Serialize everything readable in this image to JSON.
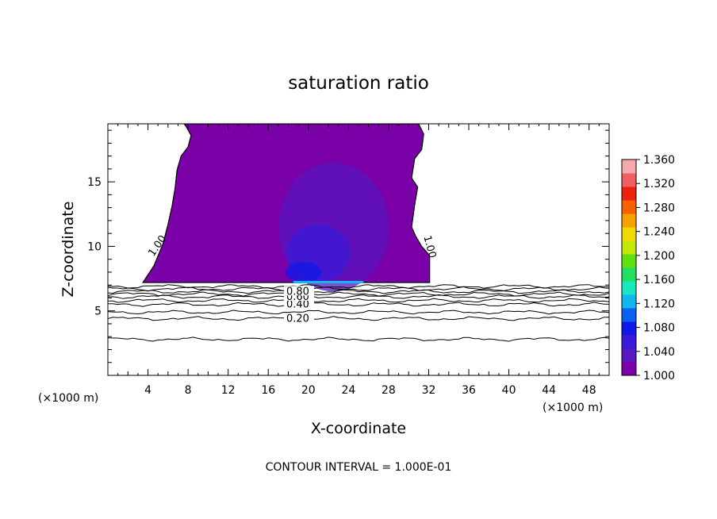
{
  "chart_data": {
    "type": "heatmap",
    "title": "saturation ratio",
    "xlabel": "X-coordinate",
    "ylabel": "Z-coordinate",
    "x_unit_left": "(×1000 m)",
    "x_unit_right": "(×1000 m)",
    "xlim": [
      0,
      50
    ],
    "ylim": [
      0,
      19.5
    ],
    "x_ticks": [
      4,
      8,
      12,
      16,
      20,
      24,
      28,
      32,
      36,
      40,
      44,
      48
    ],
    "y_ticks": [
      5,
      10,
      15
    ],
    "footer": "CONTOUR INTERVAL = 1.000E-01",
    "contour_interval": 0.1,
    "colorbar": {
      "ticks": [
        "1.360",
        "1.320",
        "1.280",
        "1.240",
        "1.200",
        "1.160",
        "1.120",
        "1.080",
        "1.040",
        "1.000"
      ],
      "min": 1.0,
      "max": 1.36,
      "colors": [
        "#7a00a8",
        "#5a16bf",
        "#3a1ad8",
        "#1018e8",
        "#0a60f0",
        "#10b8f0",
        "#18e8c0",
        "#20e060",
        "#60e010",
        "#c0e800",
        "#f0d800",
        "#f8a000",
        "#f86000",
        "#f02010",
        "#f06060",
        "#f8a8a8"
      ]
    },
    "supersaturated_region": {
      "x_left_edge": [
        [
          3.5,
          7.2
        ],
        [
          4.6,
          8.5
        ],
        [
          5.5,
          10.2
        ],
        [
          6.0,
          11.7
        ],
        [
          6.4,
          13.1
        ],
        [
          6.7,
          14.5
        ],
        [
          6.9,
          15.9
        ],
        [
          7.3,
          17.0
        ],
        [
          8.0,
          17.7
        ],
        [
          8.3,
          18.6
        ],
        [
          7.8,
          19.3
        ],
        [
          7.6,
          19.5
        ]
      ],
      "x_right_edge": [
        [
          31.0,
          19.5
        ],
        [
          31.5,
          18.7
        ],
        [
          31.3,
          17.5
        ],
        [
          30.6,
          16.8
        ],
        [
          30.3,
          15.3
        ],
        [
          30.9,
          14.6
        ],
        [
          30.6,
          13.2
        ],
        [
          30.3,
          11.5
        ],
        [
          30.7,
          10.8
        ],
        [
          31.3,
          10.0
        ],
        [
          32.1,
          9.3
        ],
        [
          32.1,
          7.2
        ]
      ],
      "base_z": 7.2,
      "label": "1.00"
    },
    "contours": [
      {
        "level": "0.20",
        "z": 4.4,
        "labeled": true
      },
      {
        "level": "0.40",
        "z": 5.5,
        "labeled": true
      },
      {
        "level": "0.60",
        "z": 6.1,
        "labeled": true
      },
      {
        "level": "0.80",
        "z": 6.5,
        "labeled": true
      },
      {
        "level": "0.10",
        "z": 2.8,
        "labeled": false
      },
      {
        "level": "0.30",
        "z": 4.9,
        "labeled": false
      },
      {
        "level": "0.50",
        "z": 5.8,
        "labeled": false
      },
      {
        "level": "0.70",
        "z": 6.3,
        "labeled": false
      },
      {
        "level": "0.90",
        "z": 6.7,
        "labeled": false
      },
      {
        "level": "0.95",
        "z": 6.9,
        "labeled": false
      }
    ]
  }
}
